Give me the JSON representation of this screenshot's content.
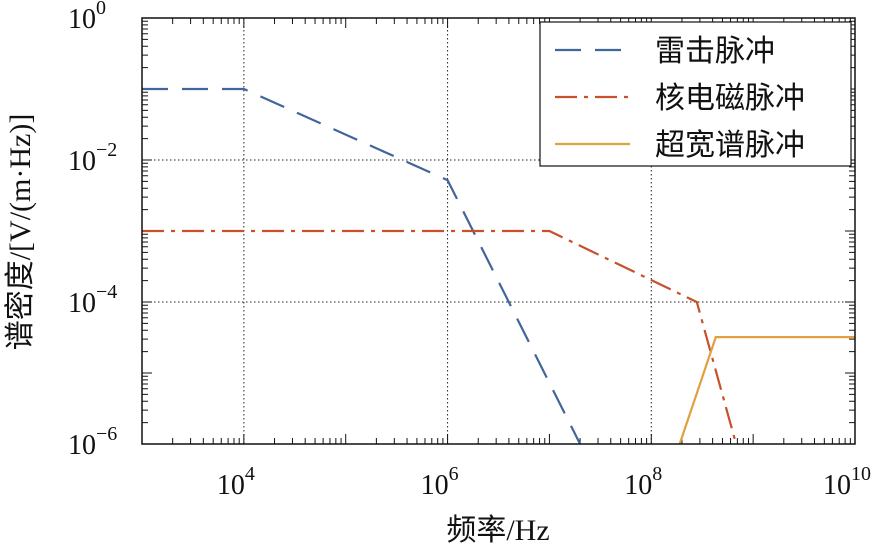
{
  "chart_data": {
    "type": "line",
    "title": "",
    "xlabel": "频率/Hz",
    "ylabel": "谱密度/[V/(m·Hz)]",
    "xscale": "log",
    "yscale": "log",
    "xlim": [
      1000,
      10000000000
    ],
    "ylim": [
      1e-06,
      1
    ],
    "x_ticks": [
      {
        "base": "10",
        "exp": "4",
        "value": 10000
      },
      {
        "base": "10",
        "exp": "6",
        "value": 1000000
      },
      {
        "base": "10",
        "exp": "8",
        "value": 100000000
      },
      {
        "base": "10",
        "exp": "10",
        "value": 10000000000
      }
    ],
    "y_ticks": [
      {
        "base": "10",
        "exp": "0",
        "value": 1
      },
      {
        "base": "10",
        "exp": "−2",
        "value": 0.01
      },
      {
        "base": "10",
        "exp": "−4",
        "value": 0.0001
      },
      {
        "base": "10",
        "exp": "−6",
        "value": 1e-06
      }
    ],
    "grid": "dotted at major decades",
    "legend_position": "top-right",
    "series": [
      {
        "name": "雷击脉冲",
        "color": "#41679a",
        "style": "dashed",
        "points": [
          [
            1000,
            0.1
          ],
          [
            10000,
            0.1
          ],
          [
            1000000,
            0.0052
          ],
          [
            20000000,
            1e-06
          ]
        ]
      },
      {
        "name": "核电磁脉冲",
        "color": "#c8502a",
        "style": "dashdot",
        "points": [
          [
            1000,
            0.001
          ],
          [
            10000000,
            0.001
          ],
          [
            280000000,
            0.0001
          ],
          [
            680000000,
            1e-06
          ]
        ]
      },
      {
        "name": "超宽谱脉冲",
        "color": "#e0a040",
        "style": "solid",
        "points": [
          [
            190000000,
            1e-06
          ],
          [
            430000000,
            3.2e-05
          ],
          [
            10000000000,
            3.2e-05
          ]
        ]
      }
    ]
  }
}
